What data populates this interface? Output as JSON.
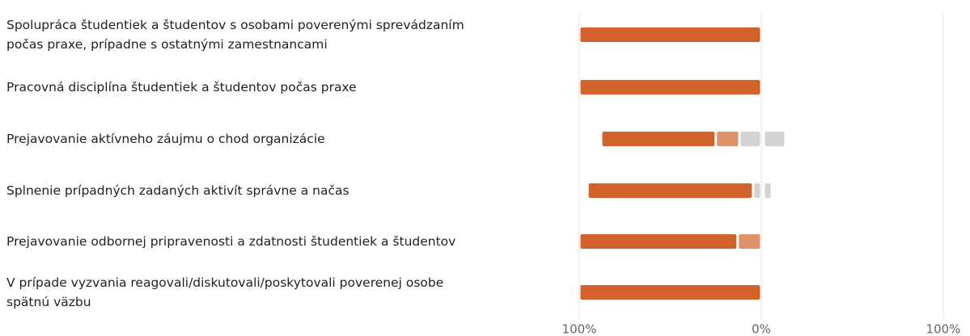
{
  "chart_data": {
    "type": "diverging_bar",
    "categories": [
      "Spolupráca študentiek a študentov s osobami poverenými sprevádzaním počas praxe, prípadne s ostatnými zamestnancami",
      "Pracovná disciplína študentiek a študentov počas praxe",
      "Prejavovanie aktívneho záujmu o chod organizácie",
      "Splnenie prípadných zadaných aktivít správne a načas",
      "Prejavovanie odbornej pripravenosti a zdatnosti študentiek a študentov",
      "V prípade vyzvania reagovali/diskutovali/poskytovali poverenej osobe spätnú väzbu"
    ],
    "series": [
      {
        "color": "#d2622a",
        "values": [
          100,
          100,
          63,
          91,
          87,
          100
        ]
      },
      {
        "color": "#e0936a",
        "values": [
          0,
          0,
          13,
          0,
          13,
          0
        ]
      },
      {
        "color": "#d3d3d3",
        "split": true,
        "values": [
          0,
          0,
          24,
          9,
          0,
          0
        ]
      }
    ],
    "xlim": [
      -100,
      100
    ],
    "xticks": [
      {
        "value": -100,
        "label": "100%"
      },
      {
        "value": 0,
        "label": "0%"
      },
      {
        "value": 100,
        "label": "100%"
      }
    ],
    "grid": true
  }
}
